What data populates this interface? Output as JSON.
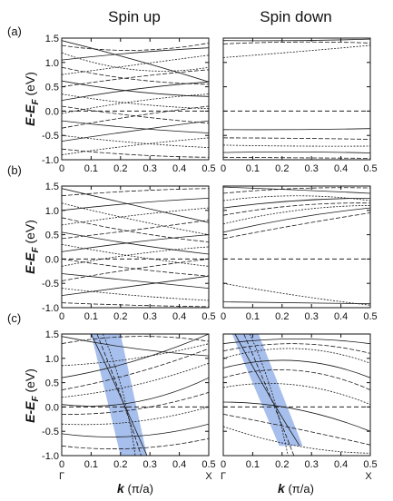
{
  "column_titles": [
    "Spin up",
    "Spin down"
  ],
  "panel_labels": [
    "(a)",
    "(b)",
    "(c)"
  ],
  "ylabel": {
    "main": "E-E",
    "sub": "F",
    "unit": " (eV)"
  },
  "xlabel": {
    "main": "k",
    "unit": " (π/a)"
  },
  "high_symmetry_labels": [
    "Γ",
    "X"
  ],
  "chart_data": {
    "type": "line",
    "subtype": "band-structure",
    "layout": "3 rows x 2 columns",
    "columns": [
      "Spin up",
      "Spin down"
    ],
    "rows": [
      "(a)",
      "(b)",
      "(c)"
    ],
    "x_ticks": [
      0,
      0.1,
      0.2,
      0.3,
      0.4,
      0.5
    ],
    "x_tick_labels": [
      "0",
      "0.1",
      "0.2",
      "0.3",
      "0.4",
      "0.5"
    ],
    "y_ticks": [
      -1.0,
      -0.5,
      0.0,
      0.5,
      1.0,
      1.5
    ],
    "y_tick_labels": [
      "-1.0",
      "-0.5",
      "0.0",
      "0.5",
      "1.0",
      "1.5"
    ],
    "xlim": [
      0,
      0.5
    ],
    "ylim": [
      -1.0,
      1.5
    ],
    "fermi_level": 0.0,
    "fermi_line_style": "dashed",
    "band_color": "#1a1a1a",
    "highlight_color": "#8aa9e6",
    "panels": [
      {
        "row": "(a)",
        "column": "Spin up",
        "bands": [
          {
            "k": [
              0,
              0.25,
              0.5
            ],
            "e": [
              1.45,
              1.05,
              0.6
            ]
          },
          {
            "k": [
              0,
              0.25,
              0.5
            ],
            "e": [
              1.35,
              1.25,
              1.4
            ]
          },
          {
            "k": [
              0,
              0.25,
              0.5
            ],
            "e": [
              1.2,
              0.85,
              0.9
            ]
          },
          {
            "k": [
              0,
              0.25,
              0.5
            ],
            "e": [
              1.05,
              1.2,
              1.3
            ]
          },
          {
            "k": [
              0,
              0.25,
              0.5
            ],
            "e": [
              0.9,
              0.65,
              0.55
            ]
          },
          {
            "k": [
              0,
              0.25,
              0.5
            ],
            "e": [
              0.75,
              0.95,
              1.15
            ]
          },
          {
            "k": [
              0,
              0.25,
              0.5
            ],
            "e": [
              0.62,
              0.4,
              0.3
            ]
          },
          {
            "k": [
              0,
              0.25,
              0.5
            ],
            "e": [
              0.5,
              0.7,
              0.85
            ]
          },
          {
            "k": [
              0,
              0.25,
              0.5
            ],
            "e": [
              0.35,
              0.15,
              0.05
            ]
          },
          {
            "k": [
              0,
              0.25,
              0.5
            ],
            "e": [
              0.22,
              0.45,
              0.6
            ]
          },
          {
            "k": [
              0,
              0.25,
              0.5
            ],
            "e": [
              0.1,
              -0.1,
              -0.25
            ]
          },
          {
            "k": [
              0,
              0.25,
              0.5
            ],
            "e": [
              -0.05,
              0.2,
              0.35
            ]
          },
          {
            "k": [
              0,
              0.25,
              0.5
            ],
            "e": [
              -0.2,
              -0.35,
              -0.45
            ]
          },
          {
            "k": [
              0,
              0.25,
              0.5
            ],
            "e": [
              -0.35,
              -0.1,
              0.1
            ]
          },
          {
            "k": [
              0,
              0.25,
              0.5
            ],
            "e": [
              -0.5,
              -0.65,
              -0.75
            ]
          },
          {
            "k": [
              0,
              0.25,
              0.5
            ],
            "e": [
              -0.62,
              -0.4,
              -0.2
            ]
          },
          {
            "k": [
              0,
              0.25,
              0.5
            ],
            "e": [
              -0.78,
              -0.9,
              -0.95
            ]
          },
          {
            "k": [
              0,
              0.25,
              0.5
            ],
            "e": [
              -0.9,
              -0.7,
              -0.55
            ]
          }
        ]
      },
      {
        "row": "(a)",
        "column": "Spin down",
        "bands": [
          {
            "k": [
              0,
              0.25,
              0.5
            ],
            "e": [
              1.45,
              1.45,
              1.48
            ]
          },
          {
            "k": [
              0,
              0.25,
              0.5
            ],
            "e": [
              1.38,
              1.42,
              1.4
            ]
          },
          {
            "k": [
              0,
              0.25,
              0.5
            ],
            "e": [
              1.1,
              1.22,
              1.35
            ]
          },
          {
            "k": [
              0,
              0.25,
              0.5
            ],
            "e": [
              -0.38,
              -0.38,
              -0.36
            ]
          },
          {
            "k": [
              0,
              0.25,
              0.5
            ],
            "e": [
              -0.55,
              -0.56,
              -0.58
            ]
          },
          {
            "k": [
              0,
              0.25,
              0.5
            ],
            "e": [
              -0.7,
              -0.72,
              -0.72
            ]
          },
          {
            "k": [
              0,
              0.25,
              0.5
            ],
            "e": [
              -0.85,
              -0.84,
              -0.86
            ]
          },
          {
            "k": [
              0,
              0.25,
              0.5
            ],
            "e": [
              -0.95,
              -0.96,
              -0.97
            ]
          }
        ]
      },
      {
        "row": "(b)",
        "column": "Spin up",
        "bands": [
          {
            "k": [
              0,
              0.25,
              0.5
            ],
            "e": [
              1.45,
              1.1,
              0.75
            ]
          },
          {
            "k": [
              0,
              0.25,
              0.5
            ],
            "e": [
              1.3,
              1.4,
              1.45
            ]
          },
          {
            "k": [
              0,
              0.25,
              0.5
            ],
            "e": [
              1.15,
              0.8,
              0.5
            ]
          },
          {
            "k": [
              0,
              0.25,
              0.5
            ],
            "e": [
              1.0,
              1.15,
              1.25
            ]
          },
          {
            "k": [
              0,
              0.25,
              0.5
            ],
            "e": [
              0.85,
              0.55,
              0.35
            ]
          },
          {
            "k": [
              0,
              0.25,
              0.5
            ],
            "e": [
              0.7,
              0.9,
              1.05
            ]
          },
          {
            "k": [
              0,
              0.25,
              0.5
            ],
            "e": [
              0.55,
              0.3,
              0.1
            ]
          },
          {
            "k": [
              0,
              0.25,
              0.5
            ],
            "e": [
              0.42,
              0.6,
              0.8
            ]
          },
          {
            "k": [
              0,
              0.25,
              0.5
            ],
            "e": [
              0.3,
              0.05,
              -0.15
            ]
          },
          {
            "k": [
              0,
              0.25,
              0.5
            ],
            "e": [
              0.15,
              0.35,
              0.5
            ]
          },
          {
            "k": [
              0,
              0.25,
              0.5
            ],
            "e": [
              0.0,
              -0.2,
              -0.35
            ]
          },
          {
            "k": [
              0,
              0.25,
              0.5
            ],
            "e": [
              -0.15,
              0.1,
              0.25
            ]
          },
          {
            "k": [
              0,
              0.25,
              0.5
            ],
            "e": [
              -0.3,
              -0.45,
              -0.6
            ]
          },
          {
            "k": [
              0,
              0.25,
              0.5
            ],
            "e": [
              -0.45,
              -0.2,
              0.0
            ]
          },
          {
            "k": [
              0,
              0.25,
              0.5
            ],
            "e": [
              -0.6,
              -0.75,
              -0.85
            ]
          },
          {
            "k": [
              0,
              0.25,
              0.5
            ],
            "e": [
              -0.75,
              -0.55,
              -0.35
            ]
          },
          {
            "k": [
              0,
              0.25,
              0.5
            ],
            "e": [
              -0.9,
              -0.95,
              -0.98
            ]
          }
        ]
      },
      {
        "row": "(b)",
        "column": "Spin down",
        "bands": [
          {
            "k": [
              0,
              0.25,
              0.5
            ],
            "e": [
              1.48,
              1.42,
              1.35
            ]
          },
          {
            "k": [
              0,
              0.25,
              0.5
            ],
            "e": [
              1.35,
              1.45,
              1.46
            ]
          },
          {
            "k": [
              0,
              0.25,
              0.5
            ],
            "e": [
              1.2,
              1.3,
              1.2
            ]
          },
          {
            "k": [
              0,
              0.25,
              0.5
            ],
            "e": [
              1.05,
              1.2,
              1.25
            ]
          },
          {
            "k": [
              0,
              0.25,
              0.5
            ],
            "e": [
              0.9,
              1.1,
              1.15
            ]
          },
          {
            "k": [
              0,
              0.25,
              0.5
            ],
            "e": [
              0.72,
              1.0,
              1.1
            ]
          },
          {
            "k": [
              0,
              0.25,
              0.5
            ],
            "e": [
              0.55,
              0.85,
              1.05
            ]
          },
          {
            "k": [
              0,
              0.25,
              0.5
            ],
            "e": [
              0.42,
              0.7,
              0.95
            ]
          },
          {
            "k": [
              0,
              0.25,
              0.5
            ],
            "e": [
              -0.5,
              -0.75,
              -0.95
            ]
          },
          {
            "k": [
              0,
              0.25,
              0.5
            ],
            "e": [
              -0.88,
              -0.9,
              -0.92
            ]
          }
        ]
      },
      {
        "row": "(c)",
        "column": "Spin up",
        "highlight_band": {
          "k_top": [
            0.1,
            0.2
          ],
          "k_bottom": [
            0.2,
            0.29
          ],
          "e_top": 1.5,
          "e_bottom": -1.0
        },
        "bands": [
          {
            "k": [
              0.1,
              0.2,
              0.29
            ],
            "e": [
              1.5,
              0.25,
              -1.0
            ]
          },
          {
            "k": [
              0.12,
              0.21,
              0.27
            ],
            "e": [
              1.5,
              0.2,
              -1.0
            ]
          },
          {
            "k": [
              0.14,
              0.22,
              0.25
            ],
            "e": [
              1.5,
              0.3,
              -1.0
            ]
          },
          {
            "k": [
              0,
              0.25,
              0.5
            ],
            "e": [
              1.45,
              1.2,
              1.05
            ]
          },
          {
            "k": [
              0,
              0.25,
              0.5
            ],
            "e": [
              1.3,
              1.45,
              1.35
            ]
          },
          {
            "k": [
              0,
              0.25,
              0.5
            ],
            "e": [
              0.85,
              1.0,
              1.3
            ]
          },
          {
            "k": [
              0,
              0.25,
              0.5
            ],
            "e": [
              0.6,
              0.95,
              1.5
            ]
          },
          {
            "k": [
              0,
              0.25,
              0.5
            ],
            "e": [
              0.35,
              0.7,
              1.2
            ]
          },
          {
            "k": [
              0,
              0.25,
              0.5
            ],
            "e": [
              0.2,
              0.45,
              0.9
            ]
          },
          {
            "k": [
              0,
              0.25,
              0.5
            ],
            "e": [
              0.05,
              0.1,
              0.6
            ]
          },
          {
            "k": [
              0,
              0.25,
              0.5
            ],
            "e": [
              -0.15,
              -0.05,
              0.3
            ]
          },
          {
            "k": [
              0,
              0.25,
              0.5
            ],
            "e": [
              -0.35,
              -0.3,
              0.0
            ]
          },
          {
            "k": [
              0,
              0.25,
              0.5
            ],
            "e": [
              -0.55,
              -0.6,
              -0.35
            ]
          },
          {
            "k": [
              0,
              0.25,
              0.5
            ],
            "e": [
              -0.8,
              -0.85,
              -0.65
            ]
          }
        ]
      },
      {
        "row": "(c)",
        "column": "Spin down",
        "highlight_band": {
          "k_top": [
            0.03,
            0.12
          ],
          "k_bottom": [
            0.19,
            0.27
          ],
          "e_top": 1.5,
          "e_bottom": -0.8
        },
        "bands": [
          {
            "k": [
              0.04,
              0.15,
              0.26
            ],
            "e": [
              1.5,
              0.3,
              -0.8
            ]
          },
          {
            "k": [
              0.07,
              0.16,
              0.24
            ],
            "e": [
              1.5,
              0.25,
              -1.0
            ]
          },
          {
            "k": [
              0.09,
              0.17,
              0.22
            ],
            "e": [
              1.5,
              0.35,
              -1.0
            ]
          },
          {
            "k": [
              0,
              0.25,
              0.5
            ],
            "e": [
              1.3,
              1.4,
              1.3
            ]
          },
          {
            "k": [
              0,
              0.25,
              0.5
            ],
            "e": [
              1.15,
              1.3,
              1.1
            ]
          },
          {
            "k": [
              0,
              0.25,
              0.5
            ],
            "e": [
              1.0,
              1.2,
              0.9
            ]
          },
          {
            "k": [
              0,
              0.25,
              0.5
            ],
            "e": [
              0.8,
              0.95,
              0.6
            ]
          },
          {
            "k": [
              0,
              0.25,
              0.5
            ],
            "e": [
              0.6,
              0.75,
              0.35
            ]
          },
          {
            "k": [
              0,
              0.25,
              0.5
            ],
            "e": [
              0.4,
              0.45,
              0.05
            ]
          },
          {
            "k": [
              0,
              0.25,
              0.5
            ],
            "e": [
              0.1,
              -0.05,
              -0.5
            ]
          },
          {
            "k": [
              0,
              0.25,
              0.5
            ],
            "e": [
              -0.15,
              -0.45,
              -0.78
            ]
          },
          {
            "k": [
              0,
              0.25,
              0.5
            ],
            "e": [
              -0.4,
              -0.8,
              -0.95
            ]
          }
        ]
      }
    ]
  }
}
